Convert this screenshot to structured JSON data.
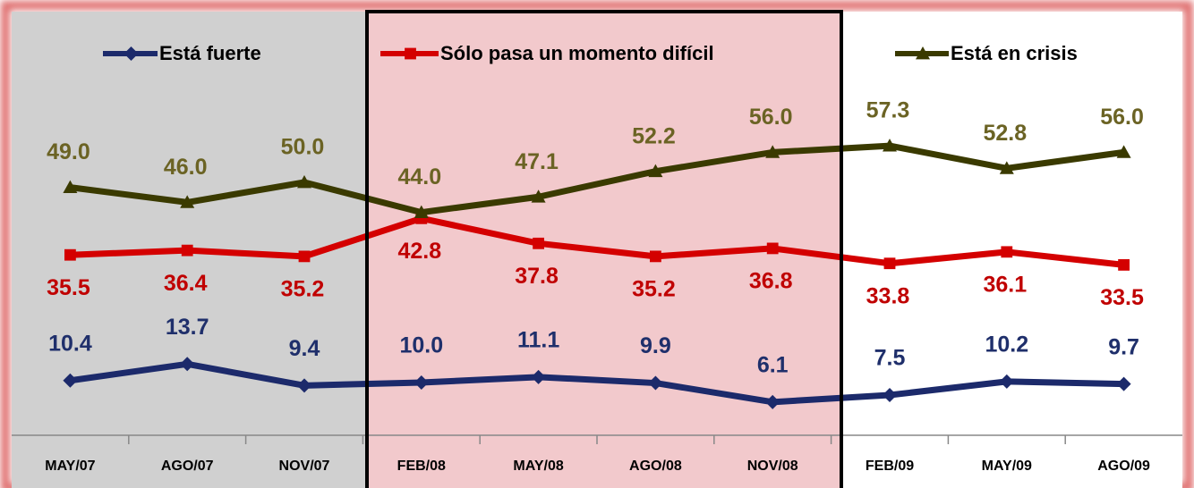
{
  "chart_data": {
    "type": "line",
    "categories": [
      "MAY/07",
      "AGO/07",
      "NOV/07",
      "FEB/08",
      "MAY/08",
      "AGO/08",
      "NOV/08",
      "FEB/09",
      "MAY/09",
      "AGO/09"
    ],
    "series": [
      {
        "name": "Está fuerte",
        "color": "#1c2a6b",
        "label_color": "#1f2f6b",
        "marker": "diamond",
        "values": [
          10.4,
          13.7,
          9.4,
          10.0,
          11.1,
          9.9,
          6.1,
          7.5,
          10.2,
          9.7
        ],
        "value_labels": [
          "10.4",
          "13.7",
          "9.4",
          "10.0",
          "11.1",
          "9.9",
          "6.1",
          "7.5",
          "10.2",
          "9.7"
        ]
      },
      {
        "name": "Sólo pasa un momento difícil",
        "color": "#d40000",
        "label_color": "#c00000",
        "marker": "square",
        "values": [
          35.5,
          36.4,
          35.2,
          42.8,
          37.8,
          35.2,
          36.8,
          33.8,
          36.1,
          33.5
        ],
        "value_labels": [
          "35.5",
          "36.4",
          "35.2",
          "42.8",
          "37.8",
          "35.2",
          "36.8",
          "33.8",
          "36.1",
          "33.5"
        ]
      },
      {
        "name": "Está en crisis",
        "color": "#3a3a00",
        "label_color": "#6b6324",
        "marker": "triangle",
        "values": [
          49.0,
          46.0,
          50.0,
          44.0,
          47.1,
          52.2,
          56.0,
          57.3,
          52.8,
          56.0
        ],
        "value_labels": [
          "49.0",
          "46.0",
          "50.0",
          "44.0",
          "47.1",
          "52.2",
          "56.0",
          "57.3",
          "52.8",
          "56.0"
        ]
      }
    ]
  }
}
